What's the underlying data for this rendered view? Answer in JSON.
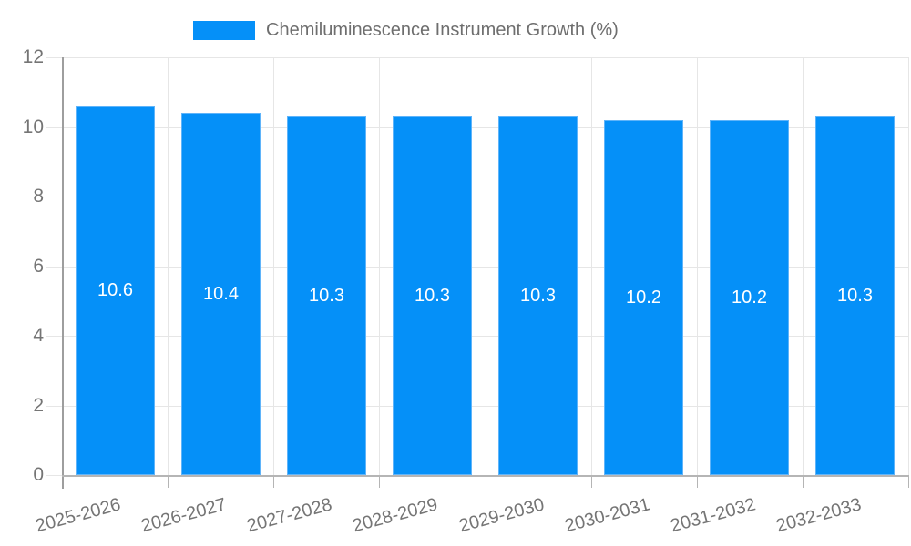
{
  "legend": {
    "label": "Chemiluminescence Instrument Growth (%)"
  },
  "chart_data": {
    "type": "bar",
    "title": "Chemiluminescence Instrument Growth (%)",
    "categories": [
      "2025-2026",
      "2026-2027",
      "2027-2028",
      "2028-2029",
      "2029-2030",
      "2030-2031",
      "2031-2032",
      "2032-2033"
    ],
    "series": [
      {
        "name": "Chemiluminescence Instrument Growth (%)",
        "values": [
          10.6,
          10.4,
          10.3,
          10.3,
          10.3,
          10.2,
          10.2,
          10.3
        ]
      }
    ],
    "bar_labels": [
      "10.6",
      "10.4",
      "10.3",
      "10.3",
      "10.3",
      "10.2",
      "10.2",
      "10.3"
    ],
    "xlabel": "",
    "ylabel": "",
    "ylim": [
      0,
      12
    ],
    "yticks": [
      0,
      2,
      4,
      6,
      8,
      10,
      12
    ],
    "grid": true,
    "legend_position": "top",
    "x_label_rotation_deg": -15,
    "colors": {
      "bar": "#0590f8",
      "bar_border": "#5fb4fa",
      "bar_label": "#ffffff",
      "axis_text": "#757575",
      "legend_text": "#6e6e6e",
      "gridline": "#e6e6e6",
      "y_axis_line": "#9e9e9e",
      "x_axis_line": "#b5b5b5"
    }
  }
}
